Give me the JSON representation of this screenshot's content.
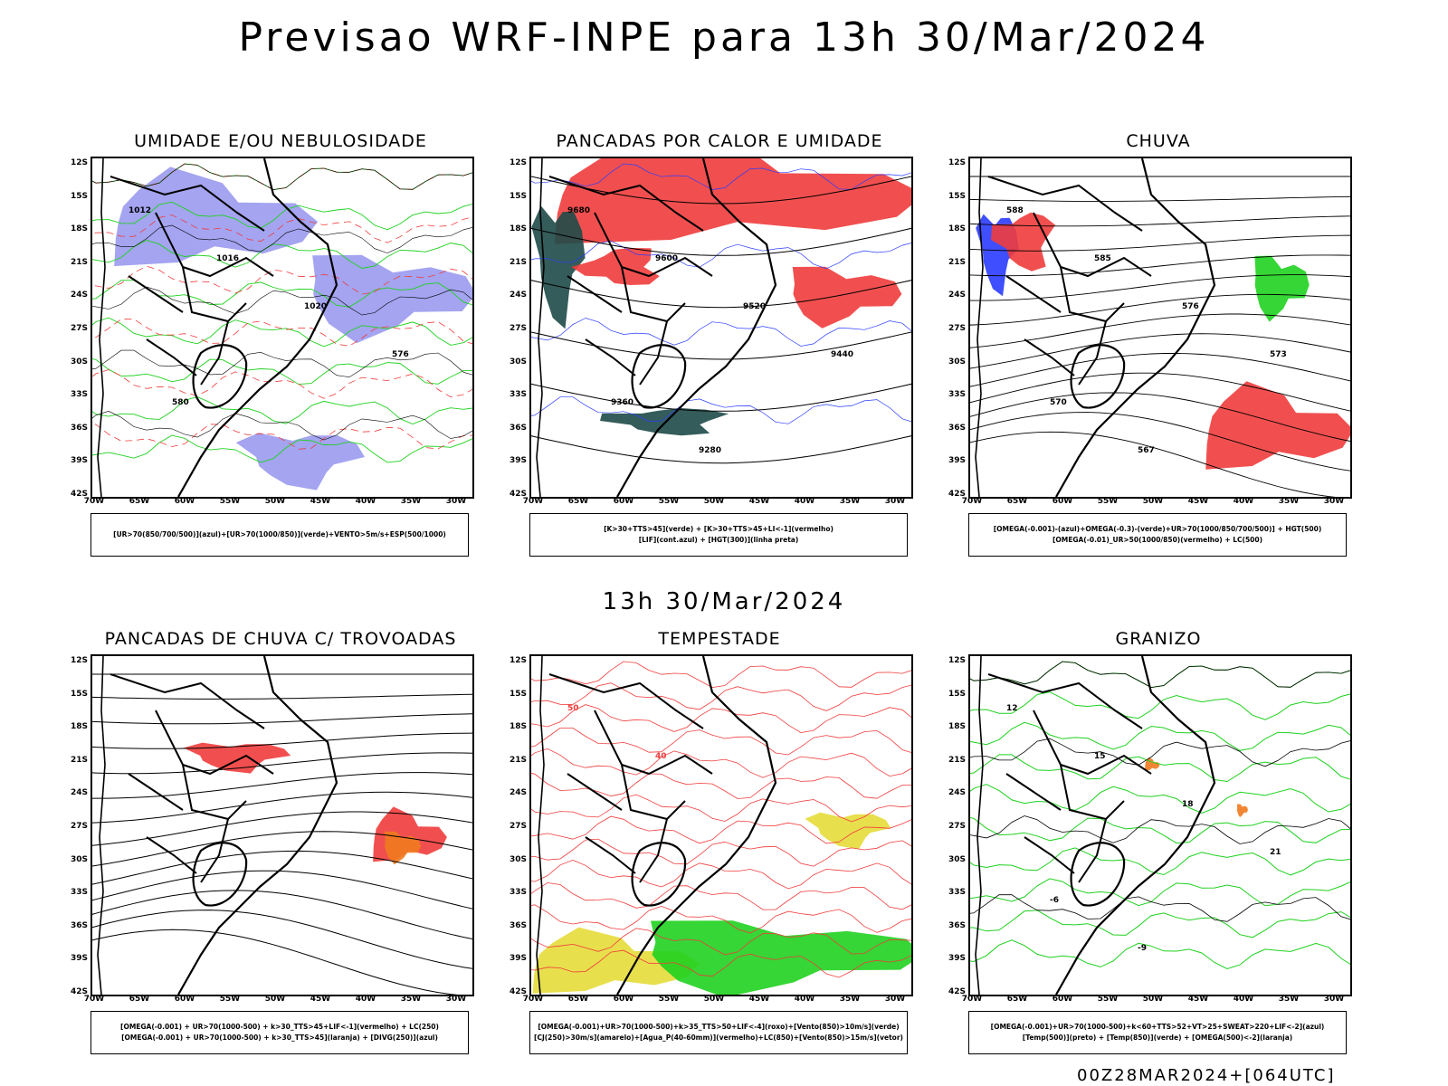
{
  "main_title": "Previsao WRF-INPE  para 13h 30/Mar/2024",
  "mid_title": "13h 30/Mar/2024",
  "footer": "00Z28MAR2024+[064UTC]",
  "lat_labels": [
    "12S",
    "15S",
    "18S",
    "21S",
    "24S",
    "27S",
    "30S",
    "33S",
    "36S",
    "39S",
    "42S"
  ],
  "lon_labels": [
    "70W",
    "65W",
    "60W",
    "55W",
    "50W",
    "45W",
    "40W",
    "35W",
    "30W"
  ],
  "colors": {
    "green": "#1fd11f",
    "blue": "#2a3cff",
    "red": "#f03c3c",
    "lilac": "#9a9af0",
    "darkteal": "#1e4a48",
    "yellow": "#e6dc3a",
    "orange": "#f07a1e",
    "purple": "#8a2be2",
    "black": "#000000"
  },
  "panels": [
    {
      "title": "UMIDADE E/OU NEBULOSIDADE",
      "legend": [
        "[UR>70(850/700/500)](azul)+[UR>70(1000/850)](verde)+VENTO>5m/s+ESP(500/1000)"
      ],
      "contour_labels": [
        "1012",
        "1016",
        "1020",
        "576",
        "580"
      ]
    },
    {
      "title": "PANCADAS POR CALOR E UMIDADE",
      "legend": [
        "[K>30+TTS>45](verde) + [K>30+TTS>45+LI<-1](vermelho)",
        "[LIF](cont.azul) + [HGT(300)](linha preta)"
      ],
      "contour_labels": [
        "9680",
        "9600",
        "9520",
        "9440",
        "9360",
        "9280"
      ]
    },
    {
      "title": "CHUVA",
      "legend": [
        "[OMEGA(-0.001)-(azul)+OMEGA(-0.3)-(verde)+UR>70(1000/850/700/500)] + HGT(500)",
        "[OMEGA(-0.01)_UR>50(1000/850)(vermelho) + LC(500)"
      ],
      "contour_labels": [
        "588",
        "585",
        "576",
        "573",
        "570",
        "567"
      ]
    },
    {
      "title": "PANCADAS DE CHUVA C/ TROVOADAS",
      "legend": [
        "[OMEGA(-0.001) + UR>70(1000-500) + k>30_TTS>45+LIF<-1](vermelho) + LC(250)",
        "[OMEGA(-0.001) + UR>70(1000-500) + k>30_TTS>45](laranja) + [DIVG(250)](azul)"
      ],
      "contour_labels": []
    },
    {
      "title": "TEMPESTADE",
      "legend": [
        "[OMEGA(-0.001)+UR>70(1000-500)+k>35_TTS>50+LIF<-4](roxo)+[Vento(850)>10m/s](verde)",
        "[CJ(250)>30m/s](amarelo)+[Agua_P(40-60mm)](vermelho)+LC(850)+[Vento(850)>15m/s](vetor)"
      ],
      "contour_labels": [
        "50",
        "40"
      ]
    },
    {
      "title": "GRANIZO",
      "legend": [
        "[OMEGA(-0.001)+UR>70(1000-500)+k<60+TTS>52+VT>25+SWEAT>220+LIF<-2](azul)",
        "[Temp(500)](preto) + [Temp(850)](verde) + [OMEGA(500)<-2](laranja)"
      ],
      "contour_labels": [
        "12",
        "15",
        "18",
        "21",
        "-6",
        "-9"
      ]
    }
  ]
}
